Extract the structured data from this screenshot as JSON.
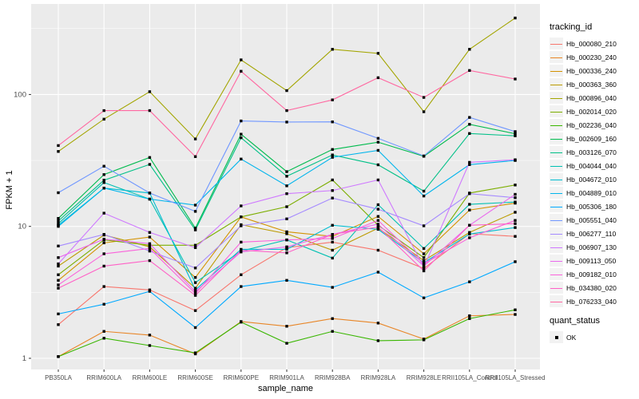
{
  "figure": {
    "background": "#ffffff",
    "panel_bg": "#ebebeb",
    "grid_color": "#ffffff",
    "tick_text_color": "#4d4d4d"
  },
  "legend": {
    "tracking_title": "tracking_id",
    "quant_title": "quant_status",
    "quant_items": [
      "OK"
    ],
    "ok_marker": "black-square"
  },
  "chart_data": {
    "type": "line",
    "title": "",
    "xlabel": "sample_name",
    "ylabel": "FPKM + 1",
    "yscale": "log10",
    "ylim": [
      0.9,
      480
    ],
    "yticks": [
      1,
      10,
      100
    ],
    "yminor": [
      3.162,
      31.62,
      316.2
    ],
    "grid": true,
    "legend_position": "right",
    "marker": {
      "shape": "square",
      "color": "#000000",
      "label": "OK"
    },
    "categories": [
      "PB350LA",
      "RRIM600LA",
      "RRIM600LE",
      "RRIM600SE",
      "RRIM600PE",
      "RRIM901LA",
      "RRIM928BA",
      "RRIM928LA",
      "RRIM928LE",
      "RRII105LA_Control",
      "RRII105LA_Stressed"
    ],
    "series": [
      {
        "name": "Hb_000080_210",
        "color": "#F8766D",
        "values": [
          1.8,
          3.5,
          3.3,
          2.3,
          4.3,
          6.9,
          7.6,
          6.6,
          4.8,
          8.8,
          8.4
        ]
      },
      {
        "name": "Hb_000230_240",
        "color": "#E88526",
        "values": [
          1.03,
          1.6,
          1.5,
          1.08,
          1.9,
          1.75,
          2.0,
          1.85,
          1.4,
          2.1,
          2.15
        ]
      },
      {
        "name": "Hb_000336_240",
        "color": "#D39200",
        "values": [
          3.9,
          7.5,
          8.3,
          4.1,
          11.8,
          9.1,
          8.4,
          11.9,
          6.2,
          13.3,
          15.0
        ]
      },
      {
        "name": "Hb_000363_360",
        "color": "#BC9B00",
        "values": [
          5.0,
          8.6,
          7.0,
          3.4,
          10.3,
          8.8,
          6.6,
          9.7,
          5.5,
          9.0,
          12.8
        ]
      },
      {
        "name": "Hb_000896_040",
        "color": "#A3A500",
        "values": [
          37,
          65,
          105,
          46,
          183,
          107,
          220,
          205,
          74,
          220,
          380
        ]
      },
      {
        "name": "Hb_002014_020",
        "color": "#7CAE00",
        "values": [
          4.3,
          7.9,
          7.2,
          7.2,
          11.8,
          14.1,
          22.5,
          10.2,
          5.8,
          17.9,
          20.6
        ]
      },
      {
        "name": "Hb_002236_040",
        "color": "#39B600",
        "values": [
          1.03,
          1.42,
          1.25,
          1.1,
          1.88,
          1.3,
          1.6,
          1.36,
          1.38,
          2.0,
          2.33
        ]
      },
      {
        "name": "Hb_002609_160",
        "color": "#00BB4E",
        "values": [
          11.5,
          24.7,
          33.3,
          9.7,
          50,
          26,
          38.3,
          43.5,
          34,
          59.4,
          50.4
        ]
      },
      {
        "name": "Hb_003126_070",
        "color": "#00C087",
        "values": [
          11.0,
          22.4,
          29.5,
          9.4,
          47,
          24,
          34.8,
          29.3,
          18.5,
          50.6,
          48.6
        ]
      },
      {
        "name": "Hb_004044_040",
        "color": "#00C0B2",
        "values": [
          10.5,
          21.5,
          16.1,
          3.75,
          6.5,
          7.9,
          5.75,
          14.6,
          6.8,
          14.7,
          15.3
        ]
      },
      {
        "name": "Hb_004672_010",
        "color": "#00BDD1",
        "values": [
          10.2,
          19.5,
          17.9,
          3.3,
          6.7,
          6.7,
          10.2,
          9.5,
          5.3,
          8.75,
          9.8
        ]
      },
      {
        "name": "Hb_004889_010",
        "color": "#00B5EC",
        "values": [
          10.0,
          19.5,
          16.1,
          14.5,
          32.4,
          20.3,
          33.4,
          37.7,
          17.0,
          29.4,
          31.6
        ]
      },
      {
        "name": "Hb_005306_180",
        "color": "#00A9FF",
        "values": [
          2.17,
          2.57,
          3.22,
          1.71,
          3.5,
          3.9,
          3.45,
          4.5,
          2.87,
          3.8,
          5.4
        ]
      },
      {
        "name": "Hb_005551_040",
        "color": "#7097FF",
        "values": [
          18,
          28.6,
          17.9,
          13.0,
          63,
          61.8,
          62,
          46.5,
          34.2,
          67,
          52.3
        ]
      },
      {
        "name": "Hb_006277_110",
        "color": "#A58AFF",
        "values": [
          7.1,
          8.7,
          6.5,
          4.84,
          10.1,
          11.4,
          16.4,
          13.5,
          10.1,
          17.7,
          16.5
        ]
      },
      {
        "name": "Hb_006907_130",
        "color": "#CF78FF",
        "values": [
          5.2,
          12.6,
          9.0,
          6.9,
          14.3,
          17.7,
          18.7,
          22.5,
          4.9,
          30.6,
          32.0
        ]
      },
      {
        "name": "Hb_009113_050",
        "color": "#EA69EE",
        "values": [
          5.8,
          8.0,
          7.4,
          3.2,
          6.4,
          7.0,
          8.7,
          10.4,
          5.0,
          10.2,
          17.5
        ]
      },
      {
        "name": "Hb_009182_010",
        "color": "#FA62DB",
        "values": [
          3.6,
          6.2,
          6.8,
          3.1,
          7.6,
          7.9,
          8.1,
          11.1,
          5.2,
          8.2,
          11.1
        ]
      },
      {
        "name": "Hb_034380_020",
        "color": "#FF61C7",
        "values": [
          3.4,
          5.0,
          5.5,
          3.0,
          6.6,
          6.3,
          8.7,
          9.9,
          4.6,
          10.2,
          10.5
        ]
      },
      {
        "name": "Hb_076233_040",
        "color": "#FF68A1",
        "values": [
          41,
          75.5,
          75.5,
          33.8,
          150,
          75.5,
          91,
          134,
          95,
          152,
          131
        ]
      }
    ]
  }
}
